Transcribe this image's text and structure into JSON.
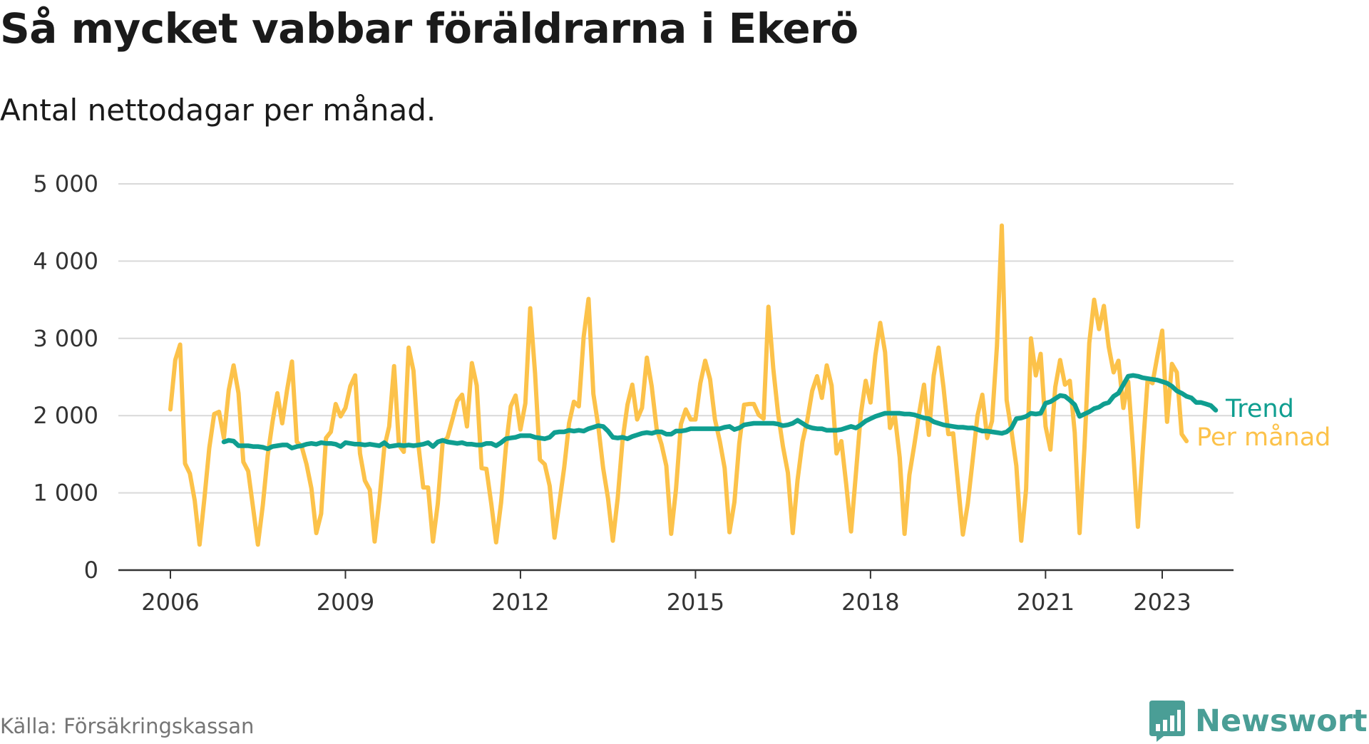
{
  "header": {
    "title": "Så mycket vabbar föräldrarna i Ekerö",
    "subtitle": "Antal nettodagar per månad."
  },
  "footer": {
    "source": "Källa: Försäkringskassan",
    "brand": "Newsworthy",
    "brand_icon": "bar-chart-badge-icon"
  },
  "colors": {
    "monthly": "#FCC24A",
    "trend": "#0F9E90",
    "grid": "#d9d9d9",
    "axis": "#333333",
    "brand": "#4a9e96"
  },
  "chart_data": {
    "type": "line",
    "x_start": "2006-01",
    "x_end": "2023-06",
    "xticks": [
      {
        "year": 2006,
        "label": "2006"
      },
      {
        "year": 2009,
        "label": "2009"
      },
      {
        "year": 2012,
        "label": "2012"
      },
      {
        "year": 2015,
        "label": "2015"
      },
      {
        "year": 2018,
        "label": "2018"
      },
      {
        "year": 2021,
        "label": "2021"
      },
      {
        "year": 2023,
        "label": "2023"
      }
    ],
    "yticks": [
      {
        "value": 0,
        "label": "0"
      },
      {
        "value": 1000,
        "label": "1 000"
      },
      {
        "value": 2000,
        "label": "2 000"
      },
      {
        "value": 3000,
        "label": "3 000"
      },
      {
        "value": 4000,
        "label": "4 000"
      },
      {
        "value": 5000,
        "label": "5 000"
      }
    ],
    "ylim": [
      0,
      5000
    ],
    "grid": true,
    "series": [
      {
        "name": "Per månad",
        "start": "2006-01",
        "values": [
          2080,
          2720,
          2920,
          1380,
          1250,
          900,
          330,
          930,
          1580,
          2020,
          2050,
          1710,
          2330,
          2650,
          2290,
          1400,
          1280,
          810,
          330,
          840,
          1480,
          1920,
          2290,
          1900,
          2330,
          2700,
          1660,
          1600,
          1370,
          1060,
          480,
          730,
          1710,
          1790,
          2150,
          1990,
          2100,
          2380,
          2520,
          1510,
          1160,
          1040,
          370,
          920,
          1590,
          1860,
          2640,
          1620,
          1530,
          2880,
          2580,
          1620,
          1070,
          1070,
          370,
          860,
          1650,
          1720,
          1950,
          2190,
          2270,
          1860,
          2680,
          2390,
          1320,
          1310,
          860,
          360,
          870,
          1590,
          2120,
          2260,
          1820,
          2160,
          3390,
          2550,
          1430,
          1370,
          1090,
          420,
          870,
          1330,
          1900,
          2180,
          2120,
          3020,
          3510,
          2280,
          1870,
          1320,
          930,
          380,
          930,
          1680,
          2140,
          2400,
          1950,
          2100,
          2750,
          2380,
          1830,
          1630,
          1350,
          470,
          1050,
          1890,
          2080,
          1950,
          1950,
          2420,
          2710,
          2470,
          1950,
          1670,
          1320,
          490,
          880,
          1640,
          2140,
          2150,
          2150,
          2010,
          1960,
          3410,
          2610,
          2020,
          1600,
          1260,
          480,
          1170,
          1660,
          1940,
          2320,
          2510,
          2230,
          2650,
          2390,
          1510,
          1670,
          1110,
          500,
          1250,
          2010,
          2450,
          2170,
          2780,
          3200,
          2820,
          1840,
          2000,
          1460,
          470,
          1230,
          1620,
          2030,
          2400,
          1750,
          2520,
          2880,
          2370,
          1760,
          1770,
          1120,
          460,
          860,
          1420,
          2000,
          2270,
          1710,
          1930,
          2900,
          4460,
          2200,
          1800,
          1350,
          380,
          1050,
          3000,
          2520,
          2800,
          1860,
          1560,
          2370,
          2720,
          2400,
          2450,
          1780,
          480,
          1580,
          2940,
          3500,
          3120,
          3420,
          2890,
          2560,
          2710,
          2100,
          2440,
          1570,
          560,
          1550,
          2460,
          2420,
          2770,
          3100,
          1920,
          2670,
          2560,
          1760,
          1670
        ]
      },
      {
        "name": "Trend",
        "start": "2006-12",
        "values": [
          1660,
          1680,
          1670,
          1610,
          1610,
          1610,
          1600,
          1600,
          1590,
          1570,
          1600,
          1610,
          1620,
          1620,
          1580,
          1600,
          1610,
          1630,
          1640,
          1630,
          1650,
          1640,
          1640,
          1630,
          1600,
          1650,
          1640,
          1630,
          1630,
          1620,
          1630,
          1620,
          1610,
          1650,
          1600,
          1610,
          1620,
          1610,
          1620,
          1610,
          1620,
          1630,
          1650,
          1600,
          1660,
          1680,
          1660,
          1650,
          1640,
          1650,
          1630,
          1630,
          1620,
          1620,
          1640,
          1640,
          1610,
          1650,
          1700,
          1710,
          1720,
          1740,
          1740,
          1740,
          1720,
          1710,
          1700,
          1720,
          1780,
          1790,
          1790,
          1810,
          1800,
          1810,
          1800,
          1830,
          1850,
          1870,
          1860,
          1800,
          1720,
          1710,
          1720,
          1700,
          1730,
          1750,
          1770,
          1780,
          1770,
          1790,
          1790,
          1760,
          1760,
          1800,
          1800,
          1810,
          1830,
          1830,
          1830,
          1830,
          1830,
          1830,
          1830,
          1850,
          1860,
          1820,
          1840,
          1880,
          1890,
          1900,
          1900,
          1900,
          1900,
          1900,
          1890,
          1870,
          1880,
          1900,
          1940,
          1900,
          1860,
          1840,
          1830,
          1830,
          1810,
          1810,
          1810,
          1820,
          1840,
          1860,
          1840,
          1880,
          1930,
          1960,
          1990,
          2010,
          2030,
          2030,
          2030,
          2030,
          2020,
          2020,
          2010,
          1990,
          1970,
          1960,
          1920,
          1900,
          1880,
          1870,
          1860,
          1850,
          1850,
          1840,
          1840,
          1820,
          1800,
          1800,
          1790,
          1780,
          1770,
          1790,
          1840,
          1960,
          1970,
          1990,
          2030,
          2020,
          2030,
          2160,
          2180,
          2220,
          2260,
          2250,
          2200,
          2140,
          1990,
          2020,
          2050,
          2090,
          2110,
          2150,
          2170,
          2250,
          2290,
          2400,
          2510,
          2520,
          2510,
          2490,
          2480,
          2470,
          2460,
          2440,
          2420,
          2380,
          2320,
          2290,
          2250,
          2230,
          2170,
          2170,
          2150,
          2130,
          2070
        ]
      }
    ]
  }
}
